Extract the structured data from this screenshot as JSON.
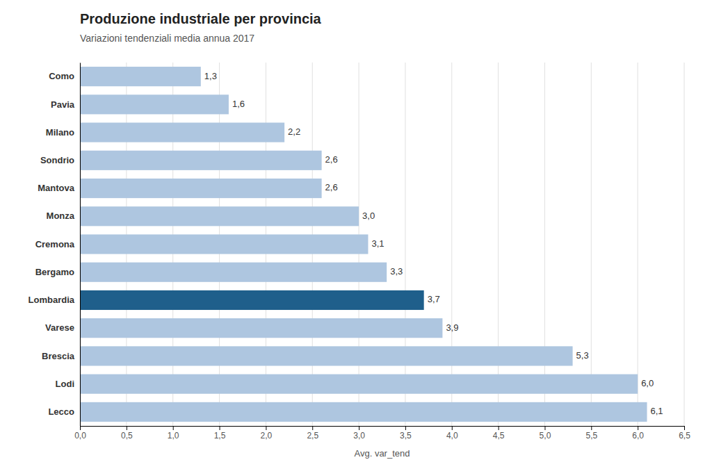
{
  "chart_data": {
    "type": "bar",
    "orientation": "horizontal",
    "title": "Produzione industriale per provincia",
    "subtitle": "Variazioni tendenziali media annua 2017",
    "xlabel": "Avg. var_tend",
    "categories": [
      "Como",
      "Pavia",
      "Milano",
      "Sondrio",
      "Mantova",
      "Monza",
      "Cremona",
      "Bergamo",
      "Lombardia",
      "Varese",
      "Brescia",
      "Lodi",
      "Lecco"
    ],
    "values": [
      1.3,
      1.6,
      2.2,
      2.6,
      2.6,
      3.0,
      3.1,
      3.3,
      3.7,
      3.9,
      5.3,
      6.0,
      6.1
    ],
    "value_labels": [
      "1,3",
      "1,6",
      "2,2",
      "2,6",
      "2,6",
      "3,0",
      "3,1",
      "3,3",
      "3,7",
      "3,9",
      "5,3",
      "6,0",
      "6,1"
    ],
    "colors": [
      "#aec6e0",
      "#aec6e0",
      "#aec6e0",
      "#aec6e0",
      "#aec6e0",
      "#aec6e0",
      "#aec6e0",
      "#aec6e0",
      "#1f5f8b",
      "#aec6e0",
      "#aec6e0",
      "#aec6e0",
      "#aec6e0"
    ],
    "data_labels": true,
    "xlim": [
      0,
      6.5
    ],
    "xticks": [
      {
        "value": 0.0,
        "label": "0,0"
      },
      {
        "value": 0.5,
        "label": "0,5"
      },
      {
        "value": 1.0,
        "label": "1,0"
      },
      {
        "value": 1.5,
        "label": "1,5"
      },
      {
        "value": 2.0,
        "label": "2,0"
      },
      {
        "value": 2.5,
        "label": "2,5"
      },
      {
        "value": 3.0,
        "label": "3,0"
      },
      {
        "value": 3.5,
        "label": "3,5"
      },
      {
        "value": 4.0,
        "label": "4,0"
      },
      {
        "value": 4.5,
        "label": "4,5"
      },
      {
        "value": 5.0,
        "label": "5,0"
      },
      {
        "value": 5.5,
        "label": "5,5"
      },
      {
        "value": 6.0,
        "label": "6,0"
      },
      {
        "value": 6.5,
        "label": "6,5"
      }
    ],
    "grid": true
  }
}
